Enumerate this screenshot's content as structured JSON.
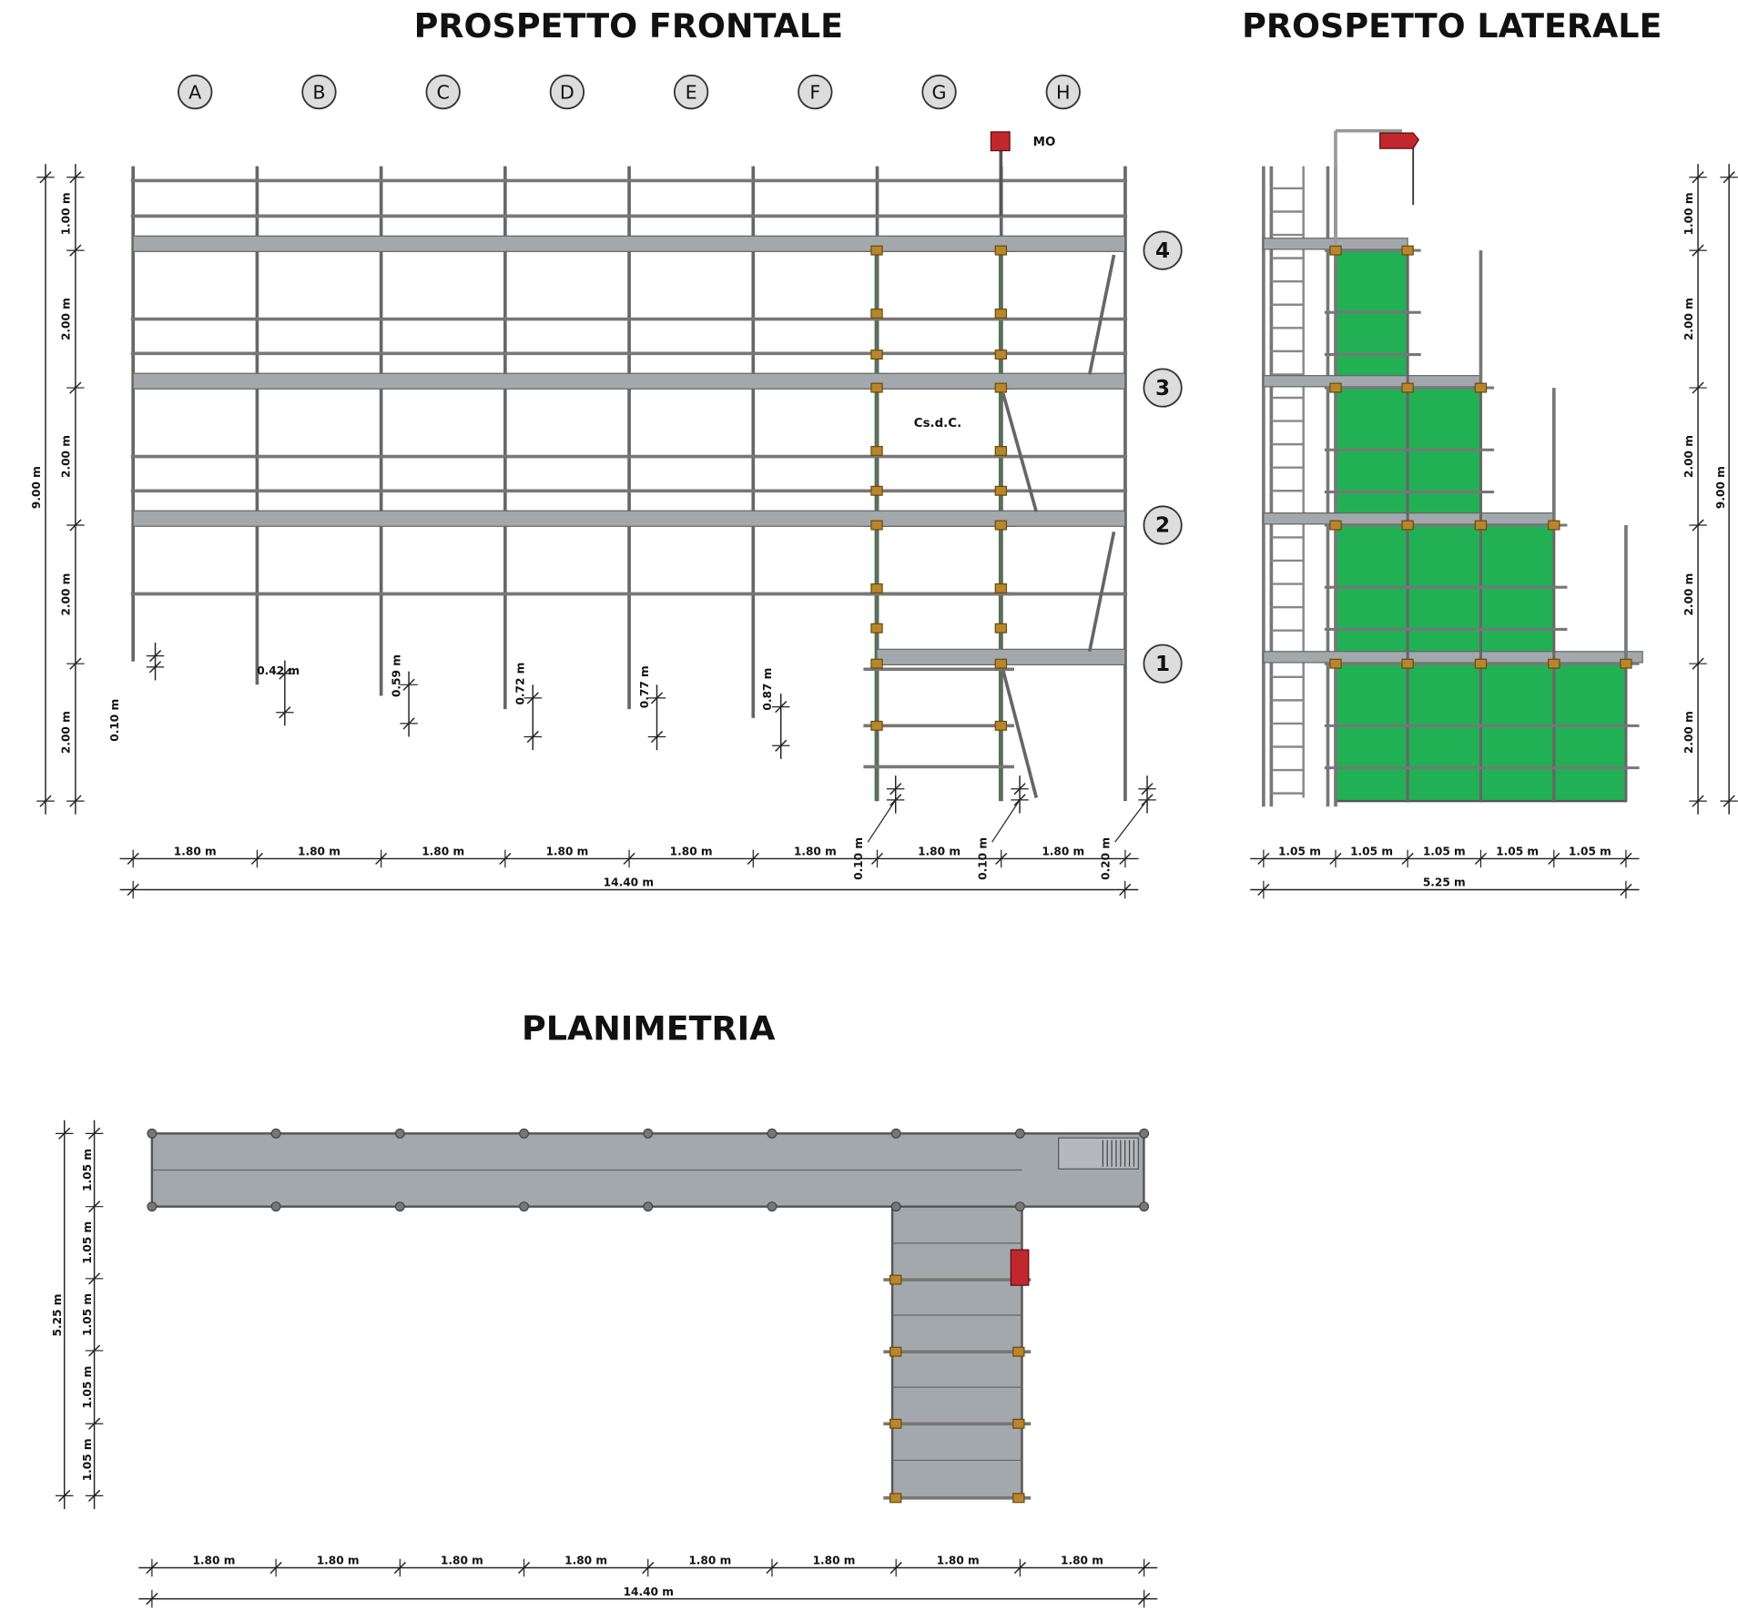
{
  "front": {
    "title": "PROSPETTO FRONTALE",
    "columns": [
      "A",
      "B",
      "C",
      "D",
      "E",
      "F",
      "G",
      "H"
    ],
    "levels": [
      "1",
      "2",
      "3",
      "4"
    ],
    "hoist_label": "MO",
    "tower_label": "Cs.d.C.",
    "height_dims": [
      "1.00 m",
      "2.00 m",
      "2.00 m",
      "2.00 m",
      "2.00 m"
    ],
    "total_height": "9.00 m",
    "base_offsets": [
      "0.10 m",
      "0.42 m",
      "0.59 m",
      "0.72 m",
      "0.77 m",
      "0.87 m"
    ],
    "bay_dims": [
      "1.80 m",
      "1.80 m",
      "1.80 m",
      "1.80 m",
      "1.80 m",
      "1.80 m",
      "1.80 m",
      "1.80 m"
    ],
    "gap_dims": [
      "0.10 m",
      "0.10 m",
      "0.20 m"
    ],
    "total_width": "14.40 m"
  },
  "side": {
    "title": "PROSPETTO LATERALE",
    "height_dims": [
      "1.00 m",
      "2.00 m",
      "2.00 m",
      "2.00 m",
      "2.00 m"
    ],
    "total_height": "9.00 m",
    "bay_dims": [
      "1.05 m",
      "1.05 m",
      "1.05 m",
      "1.05 m",
      "1.05 m"
    ],
    "total_width": "5.25 m"
  },
  "plan": {
    "title": "PLANIMETRIA",
    "depth_dims": [
      "1.05 m",
      "1.05 m",
      "1.05 m",
      "1.05 m",
      "1.05 m"
    ],
    "total_depth": "5.25 m",
    "bay_dims": [
      "1.80 m",
      "1.80 m",
      "1.80 m",
      "1.80 m",
      "1.80 m",
      "1.80 m",
      "1.80 m",
      "1.80 m"
    ],
    "total_width": "14.40 m"
  }
}
